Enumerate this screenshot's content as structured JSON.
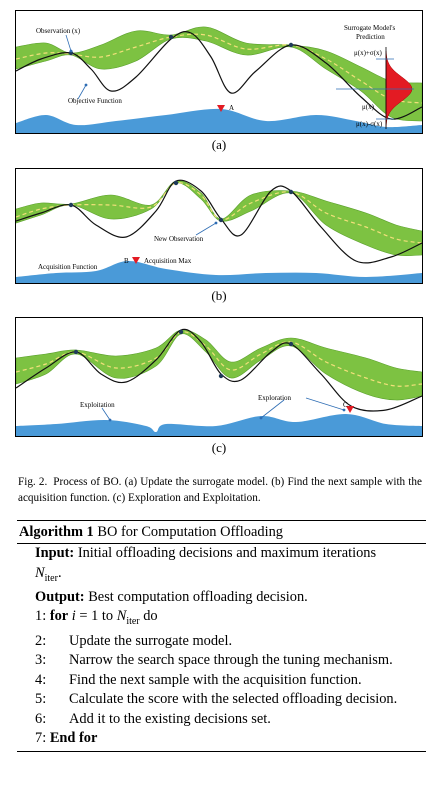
{
  "figure": {
    "panels": [
      {
        "sublabel": "(a)",
        "labels": {
          "observation": "Observation (x)",
          "objective": "Objective Function",
          "surrogate_title_1": "Surrogate Model's",
          "surrogate_title_2": "Prediction",
          "mu_plus": "μ(x)+σ(x)",
          "mu": "μ(x)",
          "mu_minus": "μ(x)-σ(x)",
          "marker": "A"
        }
      },
      {
        "sublabel": "(b)",
        "labels": {
          "new_observation": "New Observation",
          "acquisition_function": "Acquisition Function",
          "marker": "B",
          "acquisition_max": "Acquisition Max"
        }
      },
      {
        "sublabel": "(c)",
        "labels": {
          "exploitation": "Exploitation",
          "exploration": "Exploration",
          "marker": "C"
        }
      }
    ],
    "colors": {
      "band": "#7dc242",
      "band_edge": "#5aa02c",
      "objective": "#111111",
      "mean": "#f2e07a",
      "acquisition": "#4a9ad8",
      "marker": "#e31b23",
      "arrow": "#2e6db4",
      "gaussian": "#e31b23"
    }
  },
  "caption": {
    "label": "Fig. 2.",
    "text": "Process of BO. (a) Update the surrogate model. (b) Find the next sample with the acquisition function. (c) Exploration and Exploitation."
  },
  "algorithm": {
    "name": "Algorithm 1",
    "title": "BO for Computation Offloading",
    "input_label": "Input:",
    "input_text": "Initial offloading decisions and maximum iterations",
    "input_var": "N",
    "input_sub": "iter",
    "input_end": ".",
    "output_label": "Output:",
    "output_text": "Best computation offloading decision.",
    "steps": [
      {
        "num": "1:",
        "kw": "for",
        "var": "i",
        "rest": " = 1 to ",
        "var2": "N",
        "sub": "iter",
        "end": " do"
      },
      {
        "num": "2:",
        "text": "Update the surrogate model."
      },
      {
        "num": "3:",
        "text": "Narrow the search space through the tuning mechanism."
      },
      {
        "num": "4:",
        "text": "Find the next sample with the acquisition function."
      },
      {
        "num": "5:",
        "text": "Calculate the score with the selected offloading decision."
      },
      {
        "num": "6:",
        "text": "Add it to the existing decisions set."
      },
      {
        "num": "7:",
        "kw": "End for"
      }
    ]
  }
}
